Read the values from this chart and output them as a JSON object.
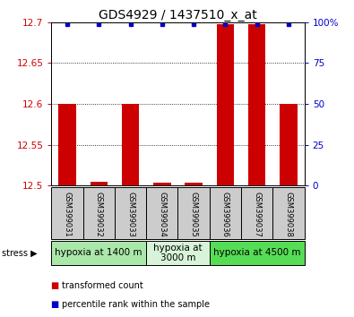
{
  "title": "GDS4929 / 1437510_x_at",
  "samples": [
    "GSM399031",
    "GSM399032",
    "GSM399033",
    "GSM399034",
    "GSM399035",
    "GSM399036",
    "GSM399037",
    "GSM399038"
  ],
  "red_values": [
    12.6,
    12.505,
    12.6,
    12.503,
    12.503,
    12.698,
    12.698,
    12.6
  ],
  "blue_values": [
    99,
    99,
    99,
    99,
    99,
    99,
    99,
    99
  ],
  "ylim_left": [
    12.5,
    12.7
  ],
  "ylim_right": [
    0,
    100
  ],
  "yticks_left": [
    12.5,
    12.55,
    12.6,
    12.65,
    12.7
  ],
  "yticks_right": [
    0,
    25,
    50,
    75,
    100
  ],
  "groups": [
    {
      "label": "hypoxia at 1400 m",
      "samples": [
        0,
        1,
        2
      ],
      "color": "#aae8aa"
    },
    {
      "label": "hypoxia at\n3000 m",
      "samples": [
        3,
        4
      ],
      "color": "#d8f4d8"
    },
    {
      "label": "hypoxia at 4500 m",
      "samples": [
        5,
        6,
        7
      ],
      "color": "#55dd55"
    }
  ],
  "bar_color": "#cc0000",
  "dot_color": "#0000cc",
  "bar_width": 0.55,
  "sample_box_color": "#cccccc",
  "legend_red": "transformed count",
  "legend_blue": "percentile rank within the sample",
  "title_fontsize": 10,
  "tick_fontsize": 7.5,
  "sample_fontsize": 6,
  "group_fontsize": 7.5,
  "legend_fontsize": 7
}
